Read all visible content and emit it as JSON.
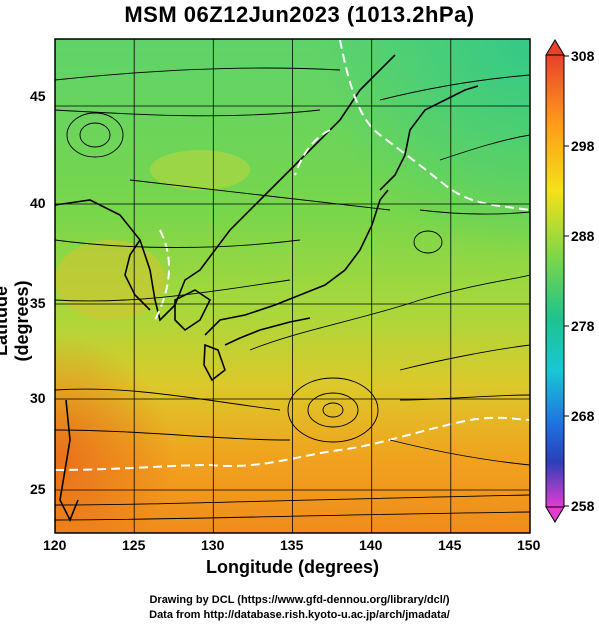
{
  "title": "MSM 06Z12Jun2023 (1013.2hPa)",
  "x_axis": {
    "label": "Longitude (degrees)",
    "ticks": [
      "120",
      "125",
      "130",
      "135",
      "140",
      "145",
      "150"
    ]
  },
  "y_axis": {
    "label": "Latitude  (degrees)",
    "ticks": [
      "45",
      "40",
      "35",
      "30",
      "25"
    ]
  },
  "colorbar": {
    "ticks": [
      "308",
      "298",
      "288",
      "278",
      "268",
      "258"
    ]
  },
  "credits": {
    "line1": "Drawing by DCL (https://www.gfd-dennou.org/library/dcl/)",
    "line2": "Data from http://database.rish.kyoto-u.ac.jp/arch/jmadata/"
  },
  "colors": {
    "warm": "#ff8c00",
    "mid": "#7ed957",
    "cool": "#2ecc71",
    "contour": "#ffffff",
    "streamline": "#000000"
  }
}
